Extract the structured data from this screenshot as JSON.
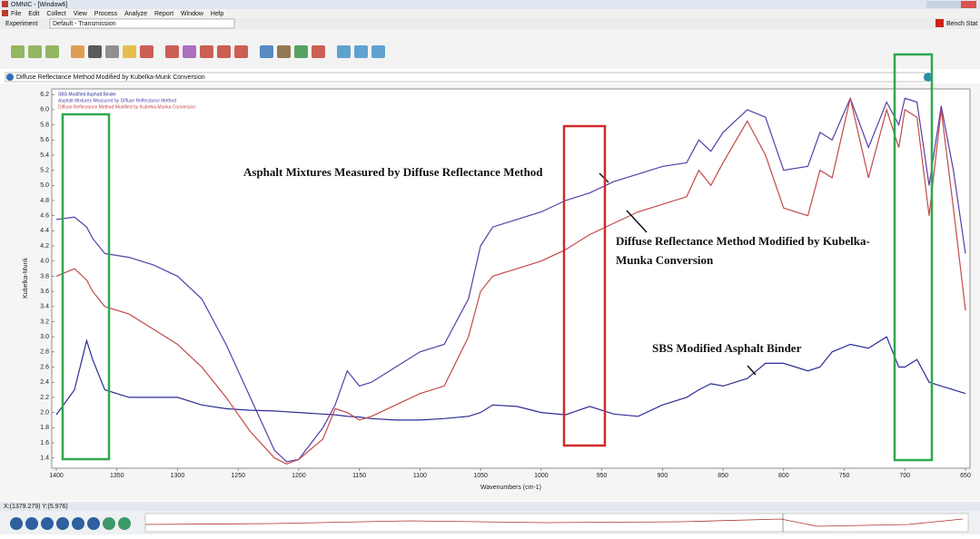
{
  "window": {
    "title": "OMNIC - [Window6]"
  },
  "menu": [
    "File",
    "Edit",
    "Collect",
    "View",
    "Process",
    "Analyze",
    "Report",
    "Window",
    "Help"
  ],
  "experiment": {
    "label": "Experiment",
    "value": "Default - Transmission"
  },
  "bench": "Bench Stat",
  "info_bar": "Diffuse Reflectance Method Modified by Kubelka-Munk Conversion",
  "status": "X:(1379.279) Y:(5.976)",
  "chart_data": {
    "type": "line",
    "xlabel": "Wavenumbers (cm-1)",
    "ylabel": "Kubelka-Munk",
    "xlim": [
      1400,
      650
    ],
    "xticks": [
      1400,
      1350,
      1300,
      1250,
      1200,
      1150,
      1100,
      1050,
      1000,
      950,
      900,
      850,
      800,
      750,
      700,
      650
    ],
    "ylim": [
      1.3,
      6.25
    ],
    "yticks": [
      1.4,
      1.6,
      1.8,
      {
        "value": 2,
        "label": "2.0"
      },
      2.2,
      2.4,
      2.6,
      2.8,
      {
        "value": 3,
        "label": "3.0"
      },
      3.2,
      3.4,
      3.6,
      3.8,
      {
        "value": 4,
        "label": "4.0"
      },
      4.2,
      4.4,
      4.6,
      4.8,
      {
        "value": 5,
        "label": "5.0"
      },
      5.2,
      5.4,
      5.6,
      5.8,
      {
        "value": 6,
        "label": "6.0"
      },
      6.2
    ],
    "x": [
      1400,
      1385,
      1375,
      1370,
      1360,
      1340,
      1320,
      1300,
      1280,
      1260,
      1240,
      1220,
      1210,
      1200,
      1180,
      1170,
      1160,
      1150,
      1140,
      1120,
      1100,
      1080,
      1060,
      1050,
      1040,
      1020,
      1000,
      980,
      960,
      940,
      920,
      900,
      880,
      870,
      860,
      850,
      830,
      815,
      800,
      780,
      770,
      760,
      745,
      730,
      715,
      705,
      700,
      690,
      680,
      670,
      660,
      650
    ],
    "series": [
      {
        "name": "SBS Modified Asphalt Binder",
        "color": "#2c2c96",
        "values": [
          1.97,
          2.3,
          2.95,
          2.7,
          2.3,
          2.2,
          2.2,
          2.2,
          2.1,
          2.05,
          2.03,
          2.02,
          2.01,
          2.0,
          1.98,
          1.97,
          1.95,
          1.94,
          1.92,
          1.9,
          1.9,
          1.92,
          1.95,
          2.0,
          2.1,
          2.08,
          2.0,
          1.97,
          2.08,
          1.98,
          1.95,
          2.1,
          2.2,
          2.3,
          2.38,
          2.35,
          2.45,
          2.65,
          2.65,
          2.55,
          2.6,
          2.8,
          2.9,
          2.85,
          3.0,
          2.6,
          2.6,
          2.7,
          2.4,
          2.35,
          2.3,
          2.25
        ]
      },
      {
        "name": "Asphalt Mixtures Measured by Diffuse Reflectance Method",
        "color": "#5a3ca8",
        "values": [
          4.55,
          4.58,
          4.45,
          4.3,
          4.1,
          4.05,
          3.95,
          3.8,
          3.5,
          2.9,
          2.2,
          1.5,
          1.35,
          1.38,
          1.8,
          2.1,
          2.55,
          2.35,
          2.4,
          2.6,
          2.8,
          2.9,
          3.5,
          4.2,
          4.45,
          4.55,
          4.65,
          4.8,
          4.9,
          5.05,
          5.15,
          5.25,
          5.3,
          5.6,
          5.45,
          5.7,
          6.0,
          5.9,
          5.2,
          5.25,
          5.7,
          5.6,
          6.15,
          5.5,
          6.1,
          5.8,
          6.15,
          6.1,
          5.0,
          6.05,
          5.2,
          4.1
        ]
      },
      {
        "name": "Diffuse Reflectance Method Modified by Kubelka-Munka Conversion",
        "color": "#c24a4a",
        "values": [
          3.8,
          3.9,
          3.75,
          3.6,
          3.4,
          3.3,
          3.1,
          2.9,
          2.6,
          2.2,
          1.75,
          1.4,
          1.32,
          1.38,
          1.65,
          2.05,
          2.0,
          1.9,
          1.95,
          2.1,
          2.25,
          2.35,
          3.0,
          3.6,
          3.8,
          3.9,
          4.0,
          4.15,
          4.35,
          4.5,
          4.65,
          4.75,
          4.85,
          5.2,
          5.0,
          5.3,
          5.85,
          5.4,
          4.7,
          4.6,
          5.2,
          5.1,
          6.15,
          5.1,
          6.0,
          5.5,
          6.0,
          5.9,
          4.6,
          6.0,
          4.7,
          3.35
        ]
      }
    ],
    "annotations": [
      "Asphalt Mixtures Measured by Diffuse Reflectance Method",
      "Diffuse Reflectance Method Modified by Kubelka-",
      "Munka Conversion",
      "SBS Modified Asphalt Binder"
    ]
  }
}
